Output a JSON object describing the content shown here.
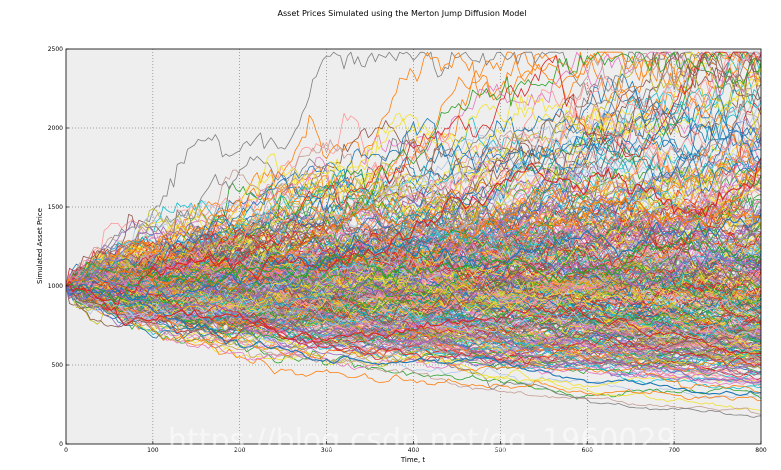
{
  "chart_data": {
    "type": "line",
    "title": "Asset Prices Simulated using the Merton Jump Diffusion Model",
    "xlabel": "Time, t",
    "ylabel": "Simulated Asset Price",
    "xlim": [
      0,
      800
    ],
    "ylim": [
      0,
      2500
    ],
    "x_ticks": [
      "0",
      "100",
      "200",
      "300",
      "400",
      "500",
      "600",
      "700",
      "800"
    ],
    "y_ticks": [
      "0",
      "500",
      "1000",
      "1500",
      "2000",
      "2500"
    ],
    "grid": true,
    "legend": "none",
    "background": "#eeeeee",
    "initial_price": 1000,
    "num_steps": 800,
    "num_paths_approx": 400,
    "selected_path_endpoints": [
      {
        "color": "#1f77b4",
        "end": 1960,
        "peak_t": 750,
        "peak": 2110
      },
      {
        "color": "#e8700a",
        "end": 1880,
        "peak_t": 650,
        "peak": 2030
      },
      {
        "color": "#d62728",
        "end": 1770
      },
      {
        "color": "#9467bd",
        "end": 1620
      },
      {
        "color": "#2ca02c",
        "end": 1560
      },
      {
        "color": "#1f77b4",
        "end": 330,
        "trough": 320
      },
      {
        "color": "#9467bd",
        "end": 390
      },
      {
        "color": "#d62728",
        "end": 440
      }
    ],
    "palette": [
      "#1f77b4",
      "#ff7f0e",
      "#2ca02c",
      "#d62728",
      "#9467bd",
      "#8c564b",
      "#e377c2",
      "#7f7f7f",
      "#bcbd22",
      "#17becf",
      "#f0e130",
      "#c49c94",
      "#aec7e8",
      "#ff9896"
    ]
  },
  "watermark": {
    "url_text": "https://blog.csdn.net/qq_1960029",
    "credit_text": "@稀土掘金技术社区"
  }
}
